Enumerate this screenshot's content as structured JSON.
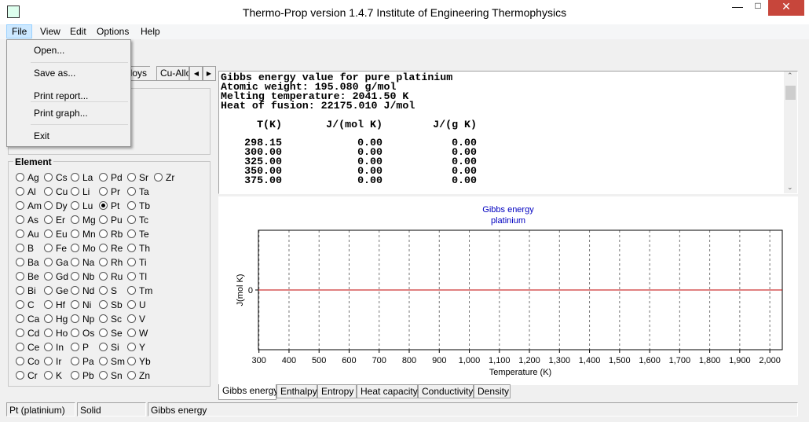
{
  "window": {
    "title": "Thermo-Prop version 1.4.7  Institute of Engineering Thermophysics"
  },
  "menu": [
    "File",
    "View",
    "Edit",
    "Options",
    "Help"
  ],
  "file_menu": [
    "Open...",
    "Save as...",
    "Print report...",
    "Print graph...",
    "Exit"
  ],
  "top_tabs": [
    "lloys",
    "Cu-Allo"
  ],
  "element_group": {
    "label": "Element",
    "selected": [
      2,
      3
    ],
    "rows": [
      [
        "Ag",
        "Cs",
        "La",
        "Pd",
        "Sr",
        "Zr"
      ],
      [
        "Al",
        "Cu",
        "Li",
        "Pr",
        "Ta"
      ],
      [
        "Am",
        "Dy",
        "Lu",
        "Pt",
        "Tb"
      ],
      [
        "As",
        "Er",
        "Mg",
        "Pu",
        "Tc"
      ],
      [
        "Au",
        "Eu",
        "Mn",
        "Rb",
        "Te"
      ],
      [
        "B",
        "Fe",
        "Mo",
        "Re",
        "Th"
      ],
      [
        "Ba",
        "Ga",
        "Na",
        "Rh",
        "Ti"
      ],
      [
        "Be",
        "Gd",
        "Nb",
        "Ru",
        "Tl"
      ],
      [
        "Bi",
        "Ge",
        "Nd",
        "S",
        "Tm"
      ],
      [
        "C",
        "Hf",
        "Ni",
        "Sb",
        "U"
      ],
      [
        "Ca",
        "Hg",
        "Np",
        "Sc",
        "V"
      ],
      [
        "Cd",
        "Ho",
        "Os",
        "Se",
        "W"
      ],
      [
        "Ce",
        "In",
        "P",
        "Si",
        "Y"
      ],
      [
        "Co",
        "Ir",
        "Pa",
        "Sm",
        "Yb"
      ],
      [
        "Cr",
        "K",
        "Pb",
        "Sn",
        "Zn"
      ]
    ]
  },
  "report": {
    "lines": [
      "Gibbs energy value for pure platinium",
      "Atomic weight: 195.080 g/mol",
      "Melting temperature: 2041.50 K",
      "Heat of fusion: 22175.010 J/mol"
    ],
    "columns": [
      "T(K)",
      "J/(mol K)",
      "J/(g K)"
    ],
    "rows": [
      [
        "298.15",
        "0.00",
        "0.00"
      ],
      [
        "300.00",
        "0.00",
        "0.00"
      ],
      [
        "325.00",
        "0.00",
        "0.00"
      ],
      [
        "350.00",
        "0.00",
        "0.00"
      ],
      [
        "375.00",
        "0.00",
        "0.00"
      ]
    ]
  },
  "chart_data": {
    "type": "line",
    "title": [
      "Gibbs energy",
      "platinium"
    ],
    "x_label": "Temperature (K)",
    "y_label": "J(mol K)",
    "xlim": [
      298.15,
      2041.5
    ],
    "ylim": [
      -1,
      1
    ],
    "grid": true,
    "xticks": [
      300,
      400,
      500,
      600,
      700,
      800,
      900,
      {
        "value": 1000,
        "label": "1,000"
      },
      {
        "value": 1100,
        "label": "1,100"
      },
      {
        "value": 1200,
        "label": "1,200"
      },
      {
        "value": 1300,
        "label": "1,300"
      },
      {
        "value": 1400,
        "label": "1,400"
      },
      {
        "value": 1500,
        "label": "1,500"
      },
      {
        "value": 1600,
        "label": "1,600"
      },
      {
        "value": 1700,
        "label": "1,700"
      },
      {
        "value": 1800,
        "label": "1,800"
      },
      {
        "value": 1900,
        "label": "1,900"
      },
      {
        "value": 2000,
        "label": "2,000"
      }
    ],
    "yticks": [
      0
    ],
    "series": [
      {
        "color": "#c00000",
        "x": [
          298.15,
          2041.5
        ],
        "values": [
          0,
          0
        ]
      }
    ]
  },
  "bottom_tabs": {
    "items": [
      "Gibbs energy",
      "Enthalpy",
      "Entropy",
      "Heat capacity",
      "Conductivity",
      "Density"
    ],
    "active": 0
  },
  "status_bar": [
    "Pt (platinium)",
    "Solid",
    "Gibbs energy"
  ]
}
